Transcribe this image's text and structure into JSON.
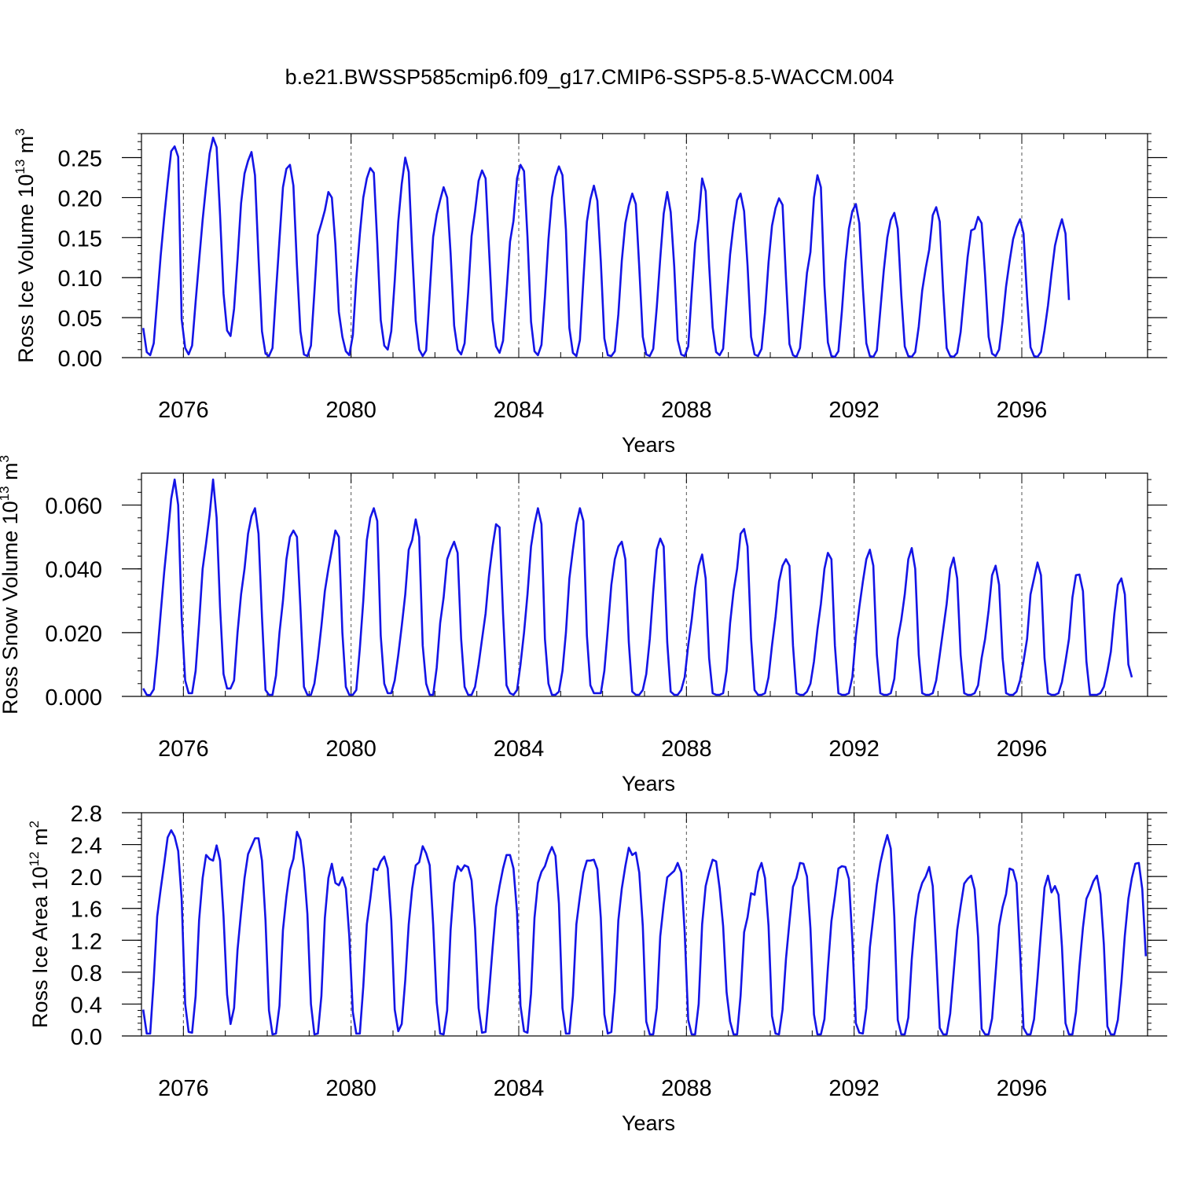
{
  "title": "b.e21.BWSSP585cmip6.f09_g17.CMIP6-SSP5-8.5-WACCM.004",
  "line_color": "#1414e6",
  "chart_data": [
    {
      "type": "line",
      "xlabel": "Years",
      "ylabel": "Ross Ice Volume 10",
      "ylabel_exp": "13",
      "ylabel_unit": " m",
      "ylabel_unit_exp": "3",
      "xlim": [
        2075.0,
        2099.0
      ],
      "ylim": [
        0.0,
        0.28
      ],
      "x_ticks": [
        "2076",
        "2080",
        "2084",
        "2088",
        "2092",
        "2096"
      ],
      "y_ticks": [
        "0.00",
        "0.05",
        "0.10",
        "0.15",
        "0.20",
        "0.25"
      ],
      "series": [
        {
          "x_start": 2075.0417,
          "x_step": 0.083333,
          "values": [
            0.037,
            0.007,
            0.003,
            0.018,
            0.072,
            0.127,
            0.175,
            0.218,
            0.258,
            0.264,
            0.251,
            0.048,
            0.012,
            0.004,
            0.015,
            0.07,
            0.121,
            0.172,
            0.215,
            0.255,
            0.275,
            0.263,
            0.178,
            0.08,
            0.034,
            0.027,
            0.061,
            0.123,
            0.193,
            0.23,
            0.246,
            0.257,
            0.228,
            0.125,
            0.033,
            0.005,
            0.002,
            0.012,
            0.081,
            0.148,
            0.213,
            0.236,
            0.241,
            0.215,
            0.115,
            0.033,
            0.004,
            0.002,
            0.015,
            0.082,
            0.153,
            0.168,
            0.184,
            0.207,
            0.2,
            0.142,
            0.057,
            0.026,
            0.008,
            0.003,
            0.028,
            0.098,
            0.154,
            0.2,
            0.224,
            0.237,
            0.231,
            0.144,
            0.047,
            0.015,
            0.01,
            0.033,
            0.096,
            0.17,
            0.217,
            0.25,
            0.232,
            0.134,
            0.046,
            0.01,
            0.002,
            0.009,
            0.081,
            0.151,
            0.179,
            0.197,
            0.213,
            0.2,
            0.13,
            0.04,
            0.01,
            0.004,
            0.018,
            0.081,
            0.152,
            0.183,
            0.221,
            0.234,
            0.224,
            0.135,
            0.047,
            0.014,
            0.006,
            0.021,
            0.081,
            0.145,
            0.171,
            0.224,
            0.241,
            0.233,
            0.151,
            0.045,
            0.008,
            0.003,
            0.016,
            0.076,
            0.148,
            0.2,
            0.226,
            0.239,
            0.228,
            0.16,
            0.037,
            0.006,
            0.002,
            0.022,
            0.097,
            0.17,
            0.198,
            0.215,
            0.196,
            0.12,
            0.024,
            0.003,
            0.002,
            0.008,
            0.054,
            0.121,
            0.168,
            0.19,
            0.205,
            0.192,
            0.113,
            0.026,
            0.004,
            0.002,
            0.011,
            0.063,
            0.124,
            0.18,
            0.207,
            0.182,
            0.114,
            0.022,
            0.004,
            0.002,
            0.014,
            0.081,
            0.143,
            0.173,
            0.224,
            0.208,
            0.116,
            0.038,
            0.007,
            0.003,
            0.011,
            0.071,
            0.129,
            0.167,
            0.197,
            0.205,
            0.183,
            0.115,
            0.026,
            0.004,
            0.002,
            0.011,
            0.056,
            0.119,
            0.165,
            0.187,
            0.199,
            0.191,
            0.099,
            0.017,
            0.003,
            0.001,
            0.012,
            0.057,
            0.106,
            0.132,
            0.2,
            0.228,
            0.213,
            0.09,
            0.019,
            0.002,
            0.001,
            0.008,
            0.058,
            0.119,
            0.161,
            0.183,
            0.192,
            0.168,
            0.087,
            0.018,
            0.002,
            0.001,
            0.009,
            0.059,
            0.109,
            0.15,
            0.172,
            0.181,
            0.161,
            0.078,
            0.014,
            0.002,
            0.001,
            0.007,
            0.039,
            0.084,
            0.112,
            0.135,
            0.178,
            0.188,
            0.17,
            0.083,
            0.012,
            0.002,
            0.001,
            0.006,
            0.032,
            0.08,
            0.126,
            0.159,
            0.161,
            0.176,
            0.168,
            0.103,
            0.026,
            0.005,
            0.002,
            0.01,
            0.046,
            0.089,
            0.12,
            0.148,
            0.163,
            0.173,
            0.155,
            0.076,
            0.013,
            0.002,
            0.001,
            0.007,
            0.034,
            0.065,
            0.105,
            0.14,
            0.159,
            0.173,
            0.155,
            0.072
          ]
        }
      ]
    },
    {
      "type": "line",
      "xlabel": "Years",
      "ylabel": "Ross Snow Volume 10",
      "ylabel_exp": "13",
      "ylabel_unit": " m",
      "ylabel_unit_exp": "3",
      "xlim": [
        2075.0,
        2099.0
      ],
      "ylim": [
        0.0,
        0.07
      ],
      "x_ticks": [
        "2076",
        "2080",
        "2084",
        "2088",
        "2092",
        "2096"
      ],
      "y_ticks": [
        "0.000",
        "0.020",
        "0.040",
        "0.060"
      ],
      "series": [
        {
          "x_start": 2075.0417,
          "x_step": 0.083333,
          "values": [
            0.0025,
            0.0005,
            0.0004,
            0.0022,
            0.013,
            0.026,
            0.039,
            0.05,
            0.062,
            0.068,
            0.06,
            0.025,
            0.005,
            0.001,
            0.001,
            0.008,
            0.023,
            0.04,
            0.048,
            0.057,
            0.068,
            0.056,
            0.028,
            0.007,
            0.0025,
            0.0025,
            0.005,
            0.02,
            0.032,
            0.04,
            0.051,
            0.0565,
            0.059,
            0.051,
            0.025,
            0.002,
            0.0005,
            0.0005,
            0.0065,
            0.02,
            0.03,
            0.043,
            0.05,
            0.052,
            0.05,
            0.028,
            0.003,
            0.0005,
            0.0005,
            0.004,
            0.012,
            0.022,
            0.033,
            0.04,
            0.046,
            0.052,
            0.05,
            0.02,
            0.003,
            0.0005,
            0.0005,
            0.002,
            0.015,
            0.03,
            0.049,
            0.056,
            0.059,
            0.055,
            0.019,
            0.004,
            0.001,
            0.001,
            0.005,
            0.013,
            0.022,
            0.032,
            0.046,
            0.049,
            0.0555,
            0.05,
            0.016,
            0.004,
            0.0005,
            0.0005,
            0.009,
            0.023,
            0.031,
            0.043,
            0.046,
            0.0485,
            0.045,
            0.018,
            0.003,
            0.0005,
            0.0005,
            0.003,
            0.01,
            0.018,
            0.026,
            0.038,
            0.047,
            0.054,
            0.053,
            0.026,
            0.0035,
            0.001,
            0.0005,
            0.002,
            0.01,
            0.02,
            0.032,
            0.047,
            0.054,
            0.059,
            0.054,
            0.018,
            0.004,
            0.0005,
            0.0005,
            0.0015,
            0.008,
            0.02,
            0.037,
            0.046,
            0.054,
            0.059,
            0.055,
            0.019,
            0.0035,
            0.001,
            0.001,
            0.001,
            0.008,
            0.021,
            0.035,
            0.043,
            0.047,
            0.0485,
            0.043,
            0.017,
            0.0015,
            0.0005,
            0.0005,
            0.002,
            0.007,
            0.018,
            0.033,
            0.046,
            0.0495,
            0.047,
            0.017,
            0.0015,
            0.0005,
            0.0005,
            0.002,
            0.006,
            0.016,
            0.024,
            0.034,
            0.041,
            0.0445,
            0.037,
            0.012,
            0.001,
            0.0005,
            0.0005,
            0.001,
            0.008,
            0.023,
            0.033,
            0.04,
            0.051,
            0.0525,
            0.047,
            0.018,
            0.002,
            0.0005,
            0.0005,
            0.001,
            0.006,
            0.016,
            0.025,
            0.036,
            0.041,
            0.043,
            0.041,
            0.016,
            0.001,
            0.0005,
            0.0005,
            0.0015,
            0.004,
            0.011,
            0.021,
            0.029,
            0.04,
            0.045,
            0.043,
            0.016,
            0.001,
            0.0005,
            0.0005,
            0.001,
            0.006,
            0.019,
            0.028,
            0.036,
            0.043,
            0.046,
            0.041,
            0.013,
            0.001,
            0.0005,
            0.0005,
            0.001,
            0.0055,
            0.018,
            0.024,
            0.032,
            0.043,
            0.0465,
            0.04,
            0.013,
            0.001,
            0.0005,
            0.0005,
            0.001,
            0.005,
            0.013,
            0.021,
            0.029,
            0.04,
            0.0435,
            0.037,
            0.013,
            0.001,
            0.0005,
            0.0005,
            0.001,
            0.0035,
            0.012,
            0.018,
            0.027,
            0.038,
            0.041,
            0.035,
            0.012,
            0.001,
            0.0005,
            0.0005,
            0.0015,
            0.005,
            0.011,
            0.018,
            0.032,
            0.037,
            0.042,
            0.038,
            0.012,
            0.001,
            0.0005,
            0.0005,
            0.001,
            0.0045,
            0.011,
            0.018,
            0.031,
            0.038,
            0.0382,
            0.033,
            0.011,
            0.0005,
            0.0005,
            0.0005,
            0.001,
            0.003,
            0.008,
            0.014,
            0.026,
            0.035,
            0.037,
            0.032,
            0.01,
            0.006
          ]
        }
      ]
    },
    {
      "type": "line",
      "xlabel": "Years",
      "ylabel": "Ross Ice Area 10",
      "ylabel_exp": "12",
      "ylabel_unit": " m",
      "ylabel_unit_exp": "2",
      "xlim": [
        2075.0,
        2099.0
      ],
      "ylim": [
        0.0,
        2.8
      ],
      "x_ticks": [
        "2076",
        "2080",
        "2084",
        "2088",
        "2092",
        "2096"
      ],
      "y_ticks": [
        "0.0",
        "0.4",
        "0.8",
        "1.2",
        "1.6",
        "2.0",
        "2.4",
        "2.8"
      ],
      "series": [
        {
          "x_start": 2075.0417,
          "x_step": 0.083333,
          "values": [
            0.33,
            0.03,
            0.03,
            0.7,
            1.5,
            1.84,
            2.16,
            2.49,
            2.58,
            2.5,
            2.32,
            1.72,
            0.4,
            0.05,
            0.04,
            0.5,
            1.45,
            1.98,
            2.27,
            2.22,
            2.2,
            2.39,
            2.2,
            1.5,
            0.52,
            0.15,
            0.35,
            1.08,
            1.55,
            1.98,
            2.28,
            2.38,
            2.48,
            2.48,
            2.2,
            1.45,
            0.32,
            0.02,
            0.03,
            0.38,
            1.33,
            1.75,
            2.08,
            2.22,
            2.56,
            2.46,
            2.1,
            1.53,
            0.4,
            0.02,
            0.03,
            0.5,
            1.48,
            1.98,
            2.16,
            1.92,
            1.89,
            1.99,
            1.85,
            1.25,
            0.3,
            0.03,
            0.03,
            0.62,
            1.4,
            1.72,
            2.1,
            2.08,
            2.19,
            2.25,
            2.1,
            1.45,
            0.33,
            0.06,
            0.15,
            0.7,
            1.4,
            1.85,
            2.14,
            2.18,
            2.38,
            2.29,
            2.14,
            1.4,
            0.42,
            0.03,
            0.02,
            0.32,
            1.33,
            1.92,
            2.13,
            2.07,
            2.14,
            2.12,
            1.95,
            1.35,
            0.35,
            0.04,
            0.05,
            0.54,
            1.1,
            1.62,
            1.88,
            2.1,
            2.27,
            2.27,
            2.1,
            1.55,
            0.38,
            0.06,
            0.04,
            0.53,
            1.48,
            1.92,
            2.06,
            2.13,
            2.27,
            2.37,
            2.26,
            1.66,
            0.35,
            0.03,
            0.03,
            0.5,
            1.4,
            1.75,
            2.05,
            2.2,
            2.2,
            2.21,
            2.09,
            1.48,
            0.27,
            0.03,
            0.05,
            0.55,
            1.45,
            1.85,
            2.13,
            2.36,
            2.27,
            2.3,
            2.05,
            1.38,
            0.18,
            0.02,
            0.02,
            0.35,
            1.25,
            1.65,
            1.99,
            2.03,
            2.07,
            2.17,
            2.05,
            1.3,
            0.2,
            0.02,
            0.02,
            0.4,
            1.4,
            1.88,
            2.06,
            2.21,
            2.19,
            1.85,
            1.38,
            0.55,
            0.18,
            0.02,
            0.02,
            0.5,
            1.3,
            1.49,
            1.79,
            1.77,
            2.06,
            2.17,
            1.98,
            1.38,
            0.25,
            0.03,
            0.02,
            0.33,
            0.97,
            1.43,
            1.87,
            1.98,
            2.17,
            2.16,
            2.0,
            1.35,
            0.27,
            0.02,
            0.02,
            0.21,
            0.85,
            1.44,
            1.75,
            2.1,
            2.13,
            2.12,
            1.97,
            1.21,
            0.16,
            0.04,
            0.03,
            0.35,
            1.11,
            1.5,
            1.9,
            2.17,
            2.36,
            2.52,
            2.35,
            1.5,
            0.2,
            0.02,
            0.02,
            0.23,
            0.96,
            1.47,
            1.78,
            1.92,
            2.0,
            2.12,
            1.88,
            1.03,
            0.1,
            0.02,
            0.02,
            0.28,
            0.8,
            1.33,
            1.63,
            1.91,
            1.97,
            2.01,
            1.84,
            1.24,
            0.09,
            0.02,
            0.02,
            0.22,
            0.79,
            1.38,
            1.62,
            1.78,
            2.1,
            2.08,
            1.92,
            1.05,
            0.1,
            0.02,
            0.02,
            0.21,
            0.73,
            1.3,
            1.86,
            2.01,
            1.8,
            1.88,
            1.77,
            1.12,
            0.16,
            0.02,
            0.02,
            0.3,
            0.87,
            1.36,
            1.72,
            1.82,
            1.94,
            2.01,
            1.78,
            1.15,
            0.12,
            0.02,
            0.02,
            0.2,
            0.67,
            1.26,
            1.72,
            1.98,
            2.16,
            2.17,
            1.84,
            1.0
          ]
        }
      ]
    }
  ]
}
